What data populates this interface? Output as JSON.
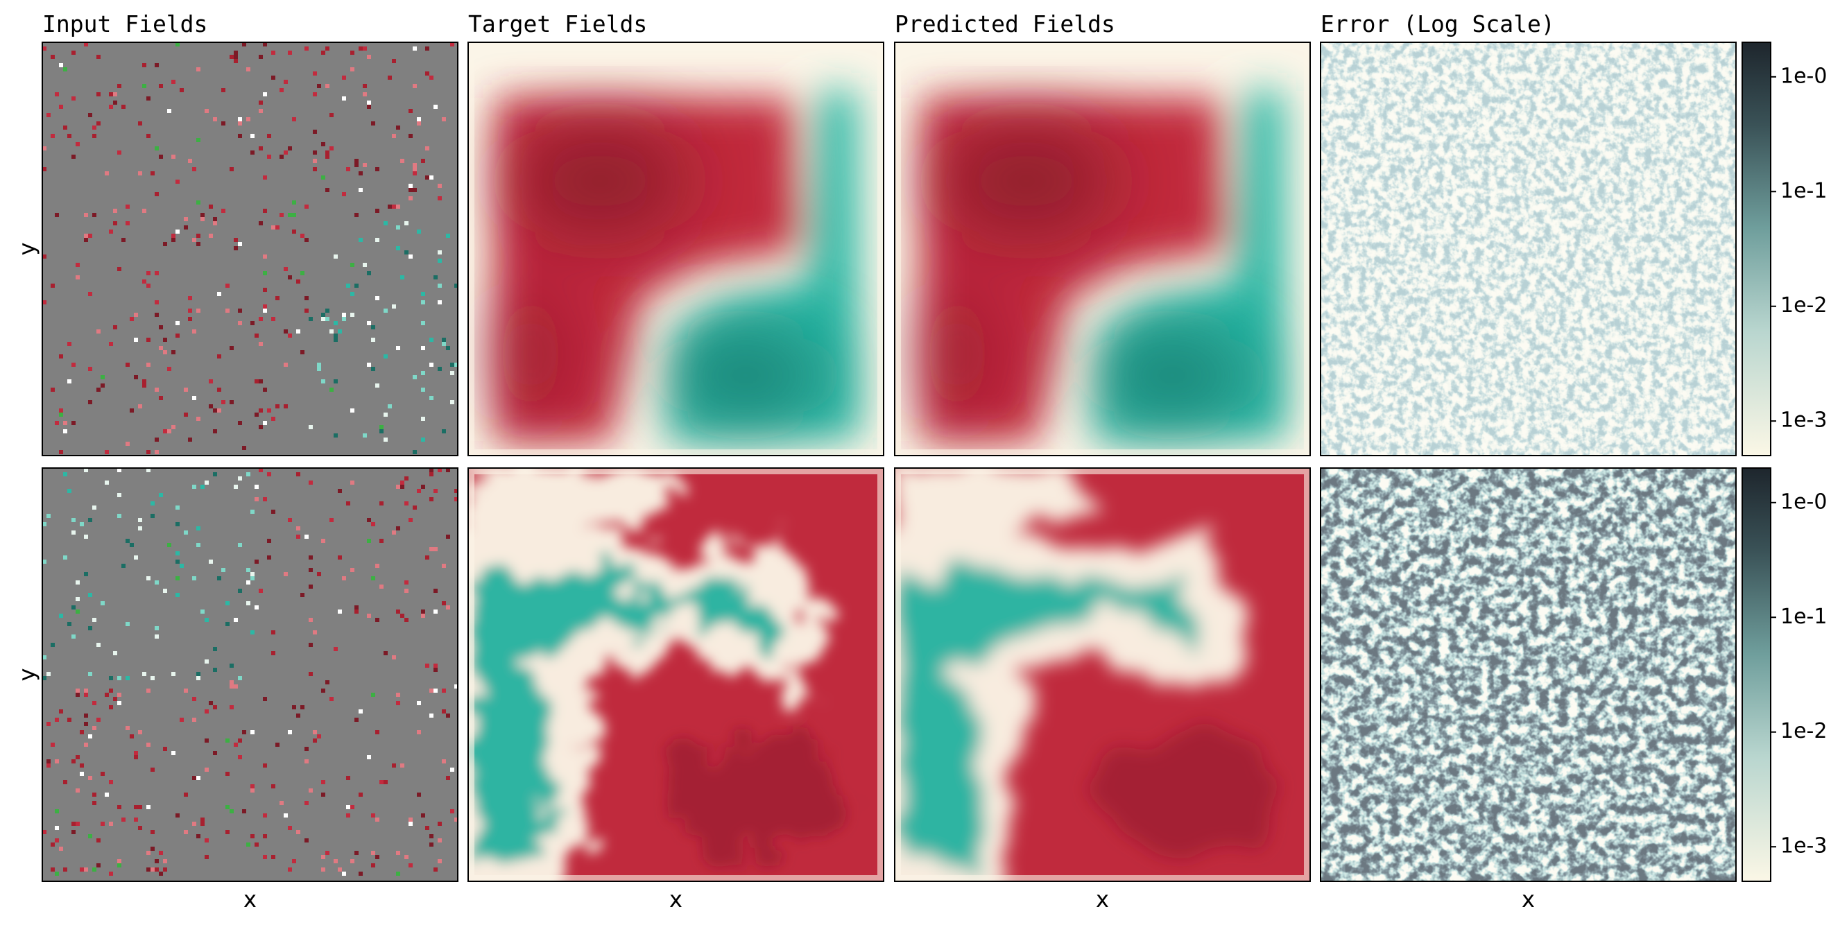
{
  "figure": {
    "column_titles": [
      "Input Fields",
      "Target Fields",
      "Predicted Fields",
      "Error (Log Scale)"
    ],
    "x_label": "x",
    "y_label": "y",
    "colorbar": {
      "scale": "log",
      "lim": [
        0.0005,
        2
      ],
      "ticks": [
        {
          "value": 1,
          "label": "1e-0"
        },
        {
          "value": 0.1,
          "label": "1e-1"
        },
        {
          "value": 0.01,
          "label": "1e-2"
        },
        {
          "value": 0.001,
          "label": "1e-3"
        }
      ]
    }
  }
}
